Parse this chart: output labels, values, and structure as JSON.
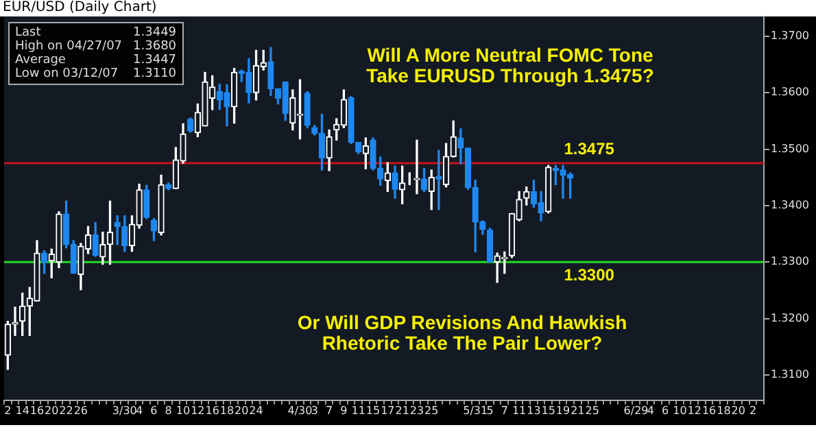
{
  "chart_data": {
    "type": "candlestick",
    "title": "EUR/USD (Daily Chart)",
    "categories": [
      "2",
      null,
      "14",
      null,
      "16",
      null,
      "20",
      null,
      "22",
      null,
      "26",
      null,
      null,
      null,
      null,
      null,
      "3/30",
      null,
      "4",
      null,
      "6",
      null,
      "8",
      null,
      "10",
      null,
      "12",
      null,
      "16",
      null,
      "18",
      null,
      "20",
      null,
      "24",
      null,
      null,
      null,
      null,
      null,
      "4/30",
      null,
      "3",
      null,
      "7",
      null,
      "9",
      null,
      "11",
      null,
      "15",
      null,
      "17",
      null,
      "21",
      null,
      "23",
      null,
      "25",
      null,
      null,
      null,
      null,
      null,
      "5/31",
      null,
      "5",
      null,
      "7",
      null,
      "11",
      null,
      "13",
      null,
      "15",
      null,
      "19",
      null,
      "21",
      null,
      "25",
      null,
      null,
      null,
      null,
      null,
      "6/29",
      null,
      "4",
      null,
      "6",
      null,
      "10",
      null,
      "12",
      null,
      "16",
      null,
      "18",
      null,
      "20",
      null,
      "2",
      null
    ],
    "ohlc": [
      [
        1.3135,
        1.3195,
        1.311,
        1.319
      ],
      [
        1.319,
        1.322,
        1.317,
        1.3193
      ],
      [
        1.3195,
        1.3245,
        1.317,
        1.3222
      ],
      [
        1.3222,
        1.3255,
        1.317,
        1.3236
      ],
      [
        1.3231,
        1.3338,
        1.3231,
        1.3316
      ],
      [
        1.3316,
        1.332,
        1.328,
        1.33
      ],
      [
        1.3302,
        1.3323,
        1.3272,
        1.3314
      ],
      [
        1.33,
        1.3389,
        1.329,
        1.3385
      ],
      [
        1.3385,
        1.3408,
        1.3325,
        1.3331
      ],
      [
        1.3331,
        1.3338,
        1.328,
        1.328
      ],
      [
        1.3278,
        1.3333,
        1.3251,
        1.3328
      ],
      [
        1.3323,
        1.3363,
        1.3315,
        1.3348
      ],
      [
        1.3348,
        1.337,
        1.331,
        1.3312
      ],
      [
        1.3309,
        1.3353,
        1.3296,
        1.3331
      ],
      [
        1.3331,
        1.3408,
        1.3296,
        1.3353
      ],
      [
        1.337,
        1.3382,
        1.3331,
        1.3363
      ],
      [
        1.3363,
        1.3382,
        1.3319,
        1.3329
      ],
      [
        1.3329,
        1.3382,
        1.3319,
        1.3367
      ],
      [
        1.3365,
        1.3438,
        1.336,
        1.3428
      ],
      [
        1.3428,
        1.3436,
        1.3377,
        1.3379
      ],
      [
        1.3374,
        1.3377,
        1.3338,
        1.3355
      ],
      [
        1.3352,
        1.3454,
        1.3348,
        1.3437
      ],
      [
        1.3437,
        1.344,
        1.3428,
        1.343
      ],
      [
        1.343,
        1.3503,
        1.343,
        1.3481
      ],
      [
        1.3479,
        1.3545,
        1.3475,
        1.3527
      ],
      [
        1.3553,
        1.3555,
        1.353,
        1.3532
      ],
      [
        1.3529,
        1.358,
        1.3522,
        1.3565
      ],
      [
        1.3541,
        1.3636,
        1.3541,
        1.3619
      ],
      [
        1.359,
        1.363,
        1.357,
        1.361
      ],
      [
        1.3602,
        1.3615,
        1.357,
        1.3587
      ],
      [
        1.36,
        1.3614,
        1.3541,
        1.3575
      ],
      [
        1.3575,
        1.3643,
        1.3546,
        1.3636
      ],
      [
        1.3638,
        1.364,
        1.362,
        1.3634
      ],
      [
        1.3636,
        1.366,
        1.3582,
        1.36
      ],
      [
        1.36,
        1.3675,
        1.3587,
        1.3648
      ],
      [
        1.3646,
        1.3675,
        1.364,
        1.3653
      ],
      [
        1.3655,
        1.368,
        1.3595,
        1.3607
      ],
      [
        1.3607,
        1.3607,
        1.358,
        1.359
      ],
      [
        1.3619,
        1.3619,
        1.3551,
        1.3563
      ],
      [
        1.3546,
        1.3605,
        1.3534,
        1.3591
      ],
      [
        1.356,
        1.3623,
        1.3518,
        1.3562
      ],
      [
        1.3599,
        1.3602,
        1.3538,
        1.3542
      ],
      [
        1.3538,
        1.3542,
        1.3525,
        1.3528
      ],
      [
        1.3528,
        1.3562,
        1.3463,
        1.3484
      ],
      [
        1.3484,
        1.3534,
        1.3462,
        1.3522
      ],
      [
        1.3534,
        1.3554,
        1.3516,
        1.3544
      ],
      [
        1.3542,
        1.3605,
        1.3538,
        1.3588
      ],
      [
        1.3591,
        1.3593,
        1.351,
        1.3512
      ],
      [
        1.3512,
        1.3512,
        1.3492,
        1.3495
      ],
      [
        1.3492,
        1.352,
        1.3465,
        1.3506
      ],
      [
        1.3516,
        1.352,
        1.3463,
        1.3466
      ],
      [
        1.3466,
        1.3486,
        1.3436,
        1.3447
      ],
      [
        1.3444,
        1.3476,
        1.3425,
        1.3458
      ],
      [
        1.3458,
        1.347,
        1.3413,
        1.3429
      ],
      [
        1.3428,
        1.347,
        1.3403,
        1.344
      ],
      [
        1.3447,
        1.3458,
        1.3437,
        1.3447
      ],
      [
        1.3446,
        1.3516,
        1.3421,
        1.3448
      ],
      [
        1.3447,
        1.3466,
        1.3425,
        1.3428
      ],
      [
        1.3425,
        1.3463,
        1.3393,
        1.345
      ],
      [
        1.3452,
        1.3498,
        1.3393,
        1.3447
      ],
      [
        1.3437,
        1.351,
        1.3433,
        1.3487
      ],
      [
        1.3487,
        1.355,
        1.3486,
        1.3522
      ],
      [
        1.352,
        1.3536,
        1.3474,
        1.3502
      ],
      [
        1.3502,
        1.3502,
        1.3429,
        1.3432
      ],
      [
        1.3432,
        1.3445,
        1.3318,
        1.3371
      ],
      [
        1.3371,
        1.3373,
        1.3349,
        1.3358
      ],
      [
        1.3357,
        1.336,
        1.33,
        1.33
      ],
      [
        1.33,
        1.3316,
        1.3264,
        1.3311
      ],
      [
        1.3306,
        1.3318,
        1.328,
        1.3308
      ],
      [
        1.3311,
        1.3386,
        1.3308,
        1.3386
      ],
      [
        1.3375,
        1.3425,
        1.3373,
        1.3411
      ],
      [
        1.3413,
        1.3433,
        1.3401,
        1.3425
      ],
      [
        1.3425,
        1.3445,
        1.3397,
        1.3403
      ],
      [
        1.3405,
        1.3425,
        1.3373,
        1.3387
      ],
      [
        1.3389,
        1.3471,
        1.3387,
        1.3468
      ],
      [
        1.3466,
        1.3471,
        1.3437,
        1.3462
      ],
      [
        1.3463,
        1.3471,
        1.3413,
        1.3454
      ],
      [
        1.3455,
        1.3458,
        1.3413,
        1.3449
      ],
      null,
      null,
      null,
      null,
      null,
      null,
      null,
      null,
      null,
      null,
      null,
      null,
      null,
      null,
      null,
      null,
      null,
      null,
      null,
      null,
      null,
      null,
      null,
      null,
      null,
      null
    ],
    "colors": [
      "#ffffff",
      "#ffffff",
      "#ffffff",
      "#ffffff",
      "#ffffff",
      "#1e88f0",
      "#ffffff",
      "#ffffff",
      "#1e88f0",
      "#1e88f0",
      "#ffffff",
      "#ffffff",
      "#1e88f0",
      "#ffffff",
      "#ffffff",
      "#1e88f0",
      "#1e88f0",
      "#ffffff",
      "#ffffff",
      "#1e88f0",
      "#1e88f0",
      "#ffffff",
      "#1e88f0",
      "#ffffff",
      "#ffffff",
      "#1e88f0",
      "#ffffff",
      "#ffffff",
      "#ffffff",
      "#1e88f0",
      "#1e88f0",
      "#ffffff",
      "#1e88f0",
      "#1e88f0",
      "#ffffff",
      "#ffffff",
      "#1e88f0",
      "#1e88f0",
      "#1e88f0",
      "#ffffff",
      "#ffffff",
      "#1e88f0",
      "#1e88f0",
      "#1e88f0",
      "#ffffff",
      "#ffffff",
      "#ffffff",
      "#1e88f0",
      "#1e88f0",
      "#ffffff",
      "#1e88f0",
      "#1e88f0",
      "#ffffff",
      "#1e88f0",
      "#ffffff",
      "#ffffff",
      "#ffffff",
      "#1e88f0",
      "#ffffff",
      "#1e88f0",
      "#ffffff",
      "#ffffff",
      "#1e88f0",
      "#1e88f0",
      "#1e88f0",
      "#1e88f0",
      "#1e88f0",
      "#ffffff",
      "#ffffff",
      "#ffffff",
      "#ffffff",
      "#ffffff",
      "#1e88f0",
      "#1e88f0",
      "#ffffff",
      "#1e88f0",
      "#1e88f0",
      "#1e88f0",
      null,
      null,
      null,
      null,
      null,
      null,
      null,
      null,
      null,
      null,
      null,
      null,
      null,
      null,
      null,
      null,
      null,
      null,
      null,
      null,
      null,
      null,
      null,
      null,
      null,
      null
    ],
    "ylim": [
      1.3055,
      1.3735
    ],
    "yticks": [
      {
        "value": 1.31,
        "label": "1.3100"
      },
      {
        "value": 1.32,
        "label": "1.3200"
      },
      {
        "value": 1.33,
        "label": "1.3300"
      },
      {
        "value": 1.34,
        "label": "1.3400"
      },
      {
        "value": 1.35,
        "label": "1.3500"
      },
      {
        "value": 1.36,
        "label": "1.3600"
      },
      {
        "value": 1.37,
        "label": "1.3700"
      }
    ],
    "ref_lines": [
      {
        "axis": "y",
        "value": 1.3475,
        "label": "1.3475",
        "color": "#c8141c"
      },
      {
        "axis": "y",
        "value": 1.33,
        "label": "1.3300",
        "color": "#22dd22"
      }
    ],
    "annotations": [
      "Last",
      "1.3449",
      "High on 04/27/07",
      "1.3680",
      "Average",
      "1.3447",
      "Low on 03/12/07",
      "1.3110",
      "Will A More Neutral FOMC Tone",
      "Take EURUSD Through 1.3475?",
      "Or Will GDP Revisions And Hawkish",
      "Rhetoric Take The Pair Lower?"
    ],
    "grid": false,
    "legend": false
  }
}
